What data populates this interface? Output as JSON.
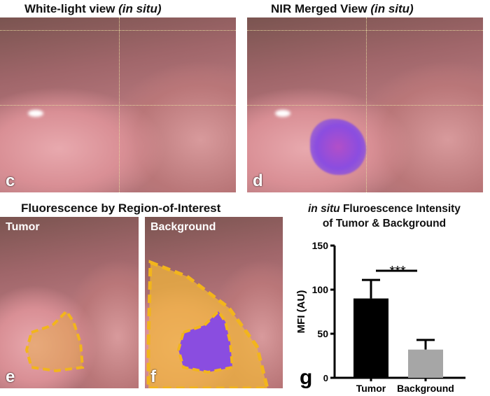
{
  "panels": {
    "c": {
      "title_main": "White-light view ",
      "title_italic": "(in situ)",
      "label": "c"
    },
    "d": {
      "title_main": "NIR Merged View ",
      "title_italic": "(in situ)",
      "label": "d"
    },
    "ef_title": "Fluorescence by Region-of-Interest",
    "e": {
      "roi": "Tumor",
      "label": "e"
    },
    "f": {
      "roi": "Background",
      "label": "f"
    }
  },
  "colors": {
    "roi_outline": "#f2b51c",
    "nir_signal": "#8a4de0",
    "tumor_bar": "#000000",
    "background_bar": "#a6a6a6"
  },
  "chart_data": {
    "type": "bar",
    "panel_label": "g",
    "title_italic": "in situ",
    "title_rest": " Fluroescence Intensity",
    "title_line2": "of Tumor & Background",
    "ylabel": "MFI (AU)",
    "ylim": [
      0,
      150
    ],
    "yticks": [
      0,
      50,
      100,
      150
    ],
    "categories": [
      "Tumor",
      "Background"
    ],
    "values": [
      90,
      32
    ],
    "error_upper": [
      111,
      43
    ],
    "significance": "***",
    "grid": false
  }
}
